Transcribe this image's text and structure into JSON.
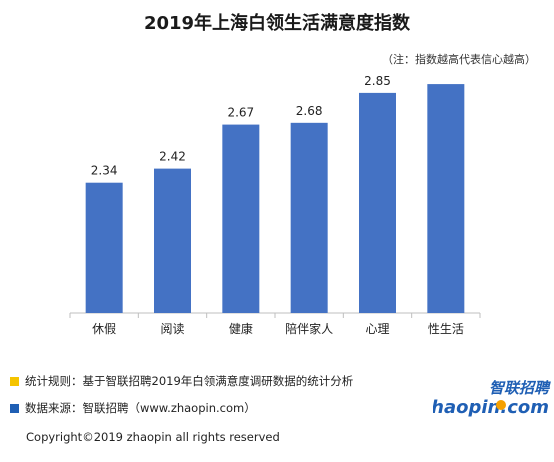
{
  "title": "2019年上海白领生活满意度指数",
  "note": "（注：指数越高代表信心越高）",
  "chart_data": {
    "type": "bar",
    "categories": [
      "休假",
      "阅读",
      "健康",
      "陪伴家人",
      "心理",
      "性生活"
    ],
    "values": [
      2.34,
      2.42,
      2.67,
      2.68,
      2.85,
      2.9
    ],
    "data_labels": [
      "2.34",
      "2.42",
      "2.67",
      "2.68",
      "2.85",
      ""
    ],
    "bar_color": "#4472c4",
    "ylim": [
      1.6,
      2.98
    ],
    "grid": false,
    "legend": "none"
  },
  "footer": {
    "method": "统计规则：基于智联招聘2019年白领满意度调研数据的统计分析",
    "source": "数据来源：智联招聘（www.zhaopin.com）",
    "method_marker_color": "#f5c400",
    "source_marker_color": "#1f5fb4"
  },
  "logo": {
    "cn": "智联招聘",
    "en": "zhaopin.com"
  },
  "copyright": "Copyright©2019 zhaopin all rights reserved"
}
